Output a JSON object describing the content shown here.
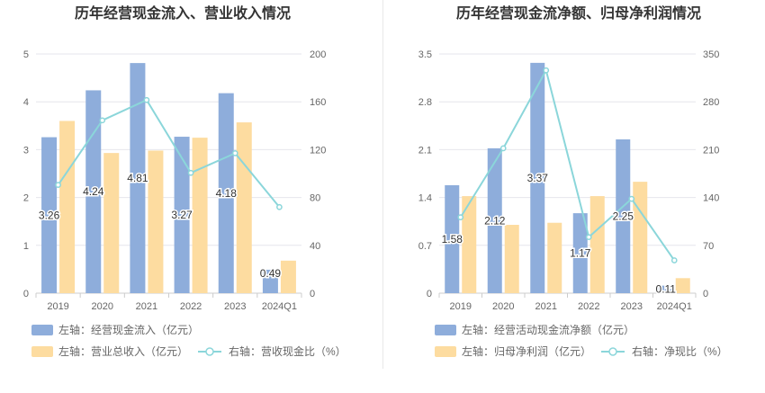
{
  "chart_data": [
    {
      "type": "bar",
      "title": "历年经营现金流入、营业收入情况",
      "categories": [
        "2019",
        "2020",
        "2021",
        "2022",
        "2023",
        "2024Q1"
      ],
      "y_left": {
        "ticks": [
          "0",
          "1",
          "2",
          "3",
          "4",
          "5"
        ],
        "ylim": [
          0,
          5
        ]
      },
      "y_right": {
        "ticks": [
          "0",
          "40",
          "80",
          "120",
          "160",
          "200"
        ],
        "ylim": [
          0,
          200
        ]
      },
      "grid": true,
      "legend_position": "bottom-left",
      "series": [
        {
          "name": "左轴：经营现金流入（亿元）",
          "type": "bar",
          "axis": "left",
          "color": "#8eaddb",
          "values": [
            3.26,
            4.24,
            4.81,
            3.27,
            4.18,
            0.49
          ],
          "labels": [
            "3.26",
            "4.24",
            "4.81",
            "3.27",
            "4.18",
            "0.49"
          ]
        },
        {
          "name": "左轴：营业总收入（亿元）",
          "type": "bar",
          "axis": "left",
          "color": "#fddca0",
          "values": [
            3.6,
            2.93,
            2.98,
            3.25,
            3.57,
            0.68
          ]
        },
        {
          "name": "右轴：营收现金比（%）",
          "type": "line",
          "axis": "right",
          "color": "#8bd6da",
          "values": [
            90.5,
            144.5,
            161.5,
            100.6,
            117.0,
            72.0
          ]
        }
      ]
    },
    {
      "type": "bar",
      "title": "历年经营现金流净额、归母净利润情况",
      "categories": [
        "2019",
        "2020",
        "2021",
        "2022",
        "2023",
        "2024Q1"
      ],
      "y_left": {
        "ticks": [
          "0",
          "0.7",
          "1.4",
          "2.1",
          "2.8",
          "3.5"
        ],
        "ylim": [
          0,
          3.5
        ]
      },
      "y_right": {
        "ticks": [
          "0",
          "70",
          "140",
          "210",
          "280",
          "350"
        ],
        "ylim": [
          0,
          350
        ]
      },
      "grid": true,
      "legend_position": "bottom-left",
      "series": [
        {
          "name": "左轴：经营活动现金流净额（亿元）",
          "type": "bar",
          "axis": "left",
          "color": "#8eaddb",
          "values": [
            1.58,
            2.12,
            3.37,
            1.17,
            2.25,
            0.11
          ],
          "labels": [
            "1.58",
            "2.12",
            "3.37",
            "1.17",
            "2.25",
            "0.11"
          ]
        },
        {
          "name": "左轴：归母净利润（亿元）",
          "type": "bar",
          "axis": "left",
          "color": "#fddca0",
          "values": [
            1.42,
            1.0,
            1.03,
            1.42,
            1.63,
            0.22
          ]
        },
        {
          "name": "右轴：净现比（%）",
          "type": "line",
          "axis": "right",
          "color": "#8bd6da",
          "values": [
            111.0,
            212.0,
            326.0,
            82.0,
            138.0,
            48.0
          ]
        }
      ]
    }
  ]
}
